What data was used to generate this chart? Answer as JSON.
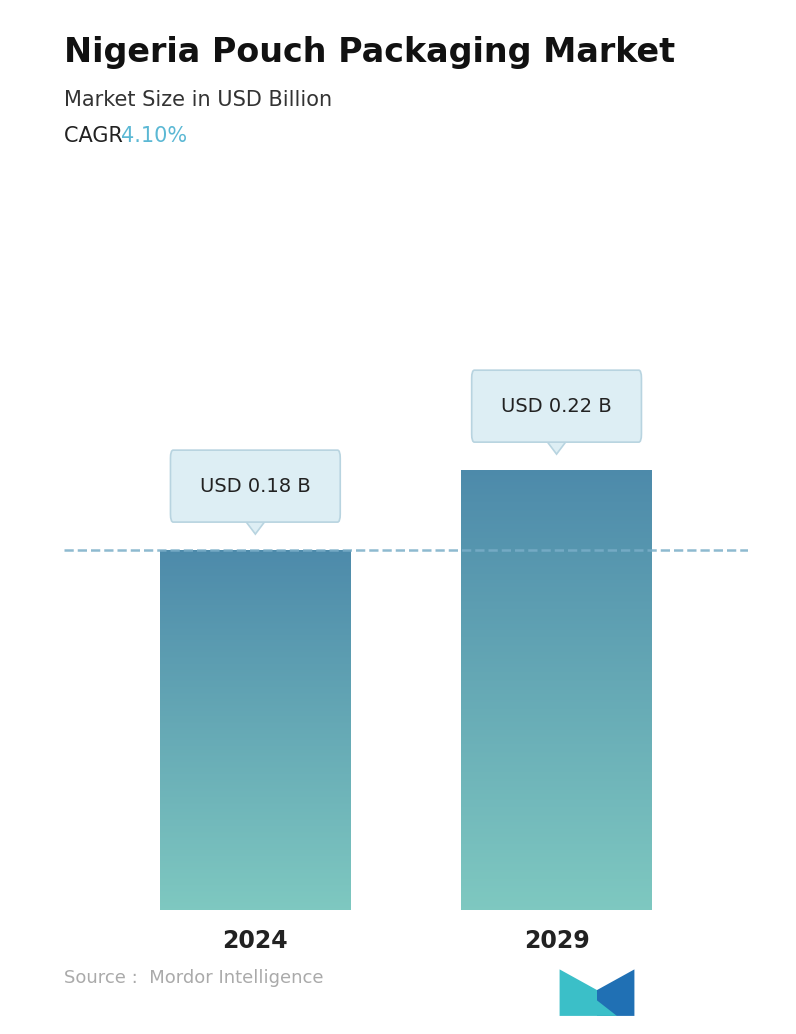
{
  "title": "Nigeria Pouch Packaging Market",
  "subtitle": "Market Size in USD Billion",
  "cagr_label": "CAGR",
  "cagr_value": "4.10%",
  "cagr_color": "#5bb8d4",
  "categories": [
    "2024",
    "2029"
  ],
  "values": [
    0.18,
    0.22
  ],
  "bar_labels": [
    "USD 0.18 B",
    "USD 0.22 B"
  ],
  "bar_top_color": "#4d8aaa",
  "bar_bottom_color": "#7ec8c0",
  "dashed_line_color": "#7aaec8",
  "dashed_line_value": 0.18,
  "source_text": "Source :  Mordor Intelligence",
  "source_color": "#aaaaaa",
  "background_color": "#ffffff",
  "title_fontsize": 24,
  "subtitle_fontsize": 15,
  "cagr_fontsize": 15,
  "bar_label_fontsize": 14,
  "tick_fontsize": 17,
  "source_fontsize": 13,
  "ylim": [
    0,
    0.3
  ],
  "bar_width": 0.28,
  "x_positions": [
    0.28,
    0.72
  ]
}
